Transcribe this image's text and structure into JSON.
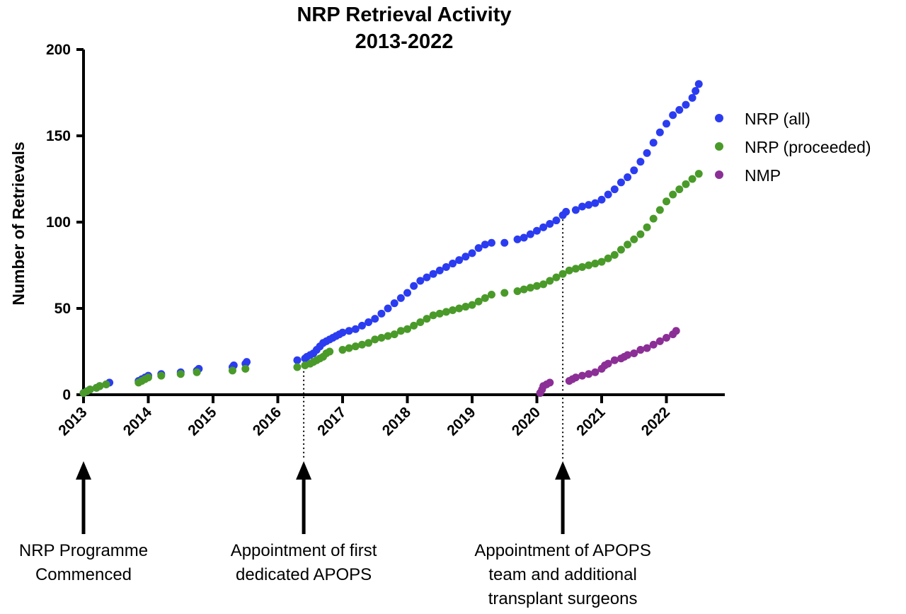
{
  "chart_data": {
    "type": "scatter",
    "title": [
      "NRP Retrieval Activity",
      "2013-2022"
    ],
    "ylabel": "Number of Retrievals",
    "xlabel": "",
    "xlim": [
      2013,
      2023
    ],
    "ylim": [
      0,
      200
    ],
    "x_ticks": [
      "2013",
      "2014",
      "2015",
      "2016",
      "2017",
      "2018",
      "2019",
      "2020",
      "2021",
      "2022"
    ],
    "y_ticks": [
      "0",
      "50",
      "100",
      "150",
      "200"
    ],
    "grid": false,
    "legend_position": "right",
    "series": [
      {
        "name": "NRP (all)",
        "color": "#2b3cf0",
        "points": [
          [
            2013.0,
            1
          ],
          [
            2013.05,
            2
          ],
          [
            2013.1,
            3
          ],
          [
            2013.2,
            4
          ],
          [
            2013.25,
            5
          ],
          [
            2013.35,
            6
          ],
          [
            2013.4,
            7
          ],
          [
            2013.85,
            8
          ],
          [
            2013.9,
            9
          ],
          [
            2013.95,
            10
          ],
          [
            2014.0,
            11
          ],
          [
            2014.2,
            12
          ],
          [
            2014.5,
            13
          ],
          [
            2014.75,
            14
          ],
          [
            2014.78,
            15
          ],
          [
            2015.3,
            16
          ],
          [
            2015.32,
            17
          ],
          [
            2015.5,
            18
          ],
          [
            2015.52,
            19
          ],
          [
            2016.3,
            20
          ],
          [
            2016.42,
            21
          ],
          [
            2016.45,
            22
          ],
          [
            2016.5,
            23
          ],
          [
            2016.55,
            24
          ],
          [
            2016.6,
            26
          ],
          [
            2016.65,
            28
          ],
          [
            2016.7,
            30
          ],
          [
            2016.75,
            31
          ],
          [
            2016.8,
            32
          ],
          [
            2016.85,
            33
          ],
          [
            2016.9,
            34
          ],
          [
            2016.95,
            35
          ],
          [
            2017.0,
            36
          ],
          [
            2017.1,
            37
          ],
          [
            2017.2,
            38
          ],
          [
            2017.3,
            40
          ],
          [
            2017.4,
            42
          ],
          [
            2017.5,
            44
          ],
          [
            2017.6,
            47
          ],
          [
            2017.7,
            50
          ],
          [
            2017.8,
            53
          ],
          [
            2017.9,
            56
          ],
          [
            2018.0,
            59
          ],
          [
            2018.1,
            63
          ],
          [
            2018.2,
            66
          ],
          [
            2018.3,
            68
          ],
          [
            2018.4,
            70
          ],
          [
            2018.5,
            72
          ],
          [
            2018.6,
            74
          ],
          [
            2018.7,
            76
          ],
          [
            2018.8,
            78
          ],
          [
            2018.9,
            80
          ],
          [
            2019.0,
            82
          ],
          [
            2019.1,
            85
          ],
          [
            2019.2,
            87
          ],
          [
            2019.3,
            88
          ],
          [
            2019.5,
            88
          ],
          [
            2019.7,
            90
          ],
          [
            2019.8,
            91
          ],
          [
            2019.9,
            93
          ],
          [
            2020.0,
            95
          ],
          [
            2020.1,
            97
          ],
          [
            2020.2,
            99
          ],
          [
            2020.3,
            101
          ],
          [
            2020.4,
            104
          ],
          [
            2020.45,
            106
          ],
          [
            2020.6,
            107
          ],
          [
            2020.7,
            109
          ],
          [
            2020.8,
            110
          ],
          [
            2020.9,
            111
          ],
          [
            2021.0,
            113
          ],
          [
            2021.1,
            116
          ],
          [
            2021.2,
            119
          ],
          [
            2021.3,
            123
          ],
          [
            2021.4,
            126
          ],
          [
            2021.5,
            130
          ],
          [
            2021.6,
            135
          ],
          [
            2021.7,
            140
          ],
          [
            2021.8,
            146
          ],
          [
            2021.9,
            152
          ],
          [
            2022.0,
            157
          ],
          [
            2022.1,
            162
          ],
          [
            2022.2,
            165
          ],
          [
            2022.3,
            168
          ],
          [
            2022.4,
            172
          ],
          [
            2022.45,
            176
          ],
          [
            2022.5,
            180
          ]
        ]
      },
      {
        "name": "NRP (proceeded)",
        "color": "#4a9a2a",
        "points": [
          [
            2013.0,
            1
          ],
          [
            2013.05,
            2
          ],
          [
            2013.1,
            3
          ],
          [
            2013.2,
            4
          ],
          [
            2013.25,
            5
          ],
          [
            2013.35,
            6
          ],
          [
            2013.85,
            7
          ],
          [
            2013.9,
            8
          ],
          [
            2013.95,
            9
          ],
          [
            2014.0,
            10
          ],
          [
            2014.2,
            11
          ],
          [
            2014.5,
            12
          ],
          [
            2014.75,
            13
          ],
          [
            2015.3,
            14
          ],
          [
            2015.5,
            15
          ],
          [
            2016.3,
            16
          ],
          [
            2016.42,
            17
          ],
          [
            2016.5,
            18
          ],
          [
            2016.55,
            19
          ],
          [
            2016.6,
            20
          ],
          [
            2016.65,
            21
          ],
          [
            2016.7,
            22
          ],
          [
            2016.75,
            24
          ],
          [
            2016.8,
            25
          ],
          [
            2017.0,
            26
          ],
          [
            2017.1,
            27
          ],
          [
            2017.2,
            28
          ],
          [
            2017.3,
            29
          ],
          [
            2017.4,
            30
          ],
          [
            2017.5,
            32
          ],
          [
            2017.6,
            33
          ],
          [
            2017.7,
            34
          ],
          [
            2017.8,
            35
          ],
          [
            2017.9,
            37
          ],
          [
            2018.0,
            38
          ],
          [
            2018.1,
            40
          ],
          [
            2018.2,
            42
          ],
          [
            2018.3,
            44
          ],
          [
            2018.4,
            46
          ],
          [
            2018.5,
            47
          ],
          [
            2018.6,
            48
          ],
          [
            2018.7,
            49
          ],
          [
            2018.8,
            50
          ],
          [
            2018.9,
            51
          ],
          [
            2019.0,
            52
          ],
          [
            2019.1,
            54
          ],
          [
            2019.2,
            56
          ],
          [
            2019.3,
            58
          ],
          [
            2019.5,
            59
          ],
          [
            2019.7,
            60
          ],
          [
            2019.8,
            61
          ],
          [
            2019.9,
            62
          ],
          [
            2020.0,
            63
          ],
          [
            2020.1,
            64
          ],
          [
            2020.2,
            66
          ],
          [
            2020.3,
            68
          ],
          [
            2020.4,
            70
          ],
          [
            2020.5,
            72
          ],
          [
            2020.6,
            73
          ],
          [
            2020.7,
            74
          ],
          [
            2020.8,
            75
          ],
          [
            2020.9,
            76
          ],
          [
            2021.0,
            77
          ],
          [
            2021.1,
            79
          ],
          [
            2021.2,
            81
          ],
          [
            2021.3,
            84
          ],
          [
            2021.4,
            87
          ],
          [
            2021.5,
            90
          ],
          [
            2021.6,
            93
          ],
          [
            2021.7,
            97
          ],
          [
            2021.8,
            102
          ],
          [
            2021.9,
            107
          ],
          [
            2022.0,
            112
          ],
          [
            2022.1,
            116
          ],
          [
            2022.2,
            119
          ],
          [
            2022.3,
            122
          ],
          [
            2022.4,
            125
          ],
          [
            2022.5,
            128
          ]
        ]
      },
      {
        "name": "NMP",
        "color": "#8b2f96",
        "points": [
          [
            2020.05,
            1
          ],
          [
            2020.08,
            3
          ],
          [
            2020.1,
            5
          ],
          [
            2020.15,
            6
          ],
          [
            2020.2,
            7
          ],
          [
            2020.5,
            8
          ],
          [
            2020.55,
            9
          ],
          [
            2020.6,
            10
          ],
          [
            2020.7,
            11
          ],
          [
            2020.8,
            12
          ],
          [
            2020.9,
            13
          ],
          [
            2021.0,
            15
          ],
          [
            2021.05,
            17
          ],
          [
            2021.1,
            18
          ],
          [
            2021.2,
            20
          ],
          [
            2021.3,
            21
          ],
          [
            2021.35,
            22
          ],
          [
            2021.4,
            23
          ],
          [
            2021.5,
            24
          ],
          [
            2021.6,
            26
          ],
          [
            2021.7,
            27
          ],
          [
            2021.8,
            29
          ],
          [
            2021.9,
            31
          ],
          [
            2022.0,
            33
          ],
          [
            2022.1,
            35
          ],
          [
            2022.15,
            37
          ]
        ]
      }
    ],
    "annotations": [
      {
        "x": 2013,
        "lines": [
          "NRP Programme",
          "Commenced"
        ],
        "dotted_line": false
      },
      {
        "x": 2016.4,
        "lines": [
          "Appointment of first",
          "dedicated APOPS"
        ],
        "dotted_line": true
      },
      {
        "x": 2020.4,
        "lines": [
          "Appointment of APOPS",
          "team and additional",
          "transplant surgeons"
        ],
        "dotted_line": true
      }
    ]
  }
}
